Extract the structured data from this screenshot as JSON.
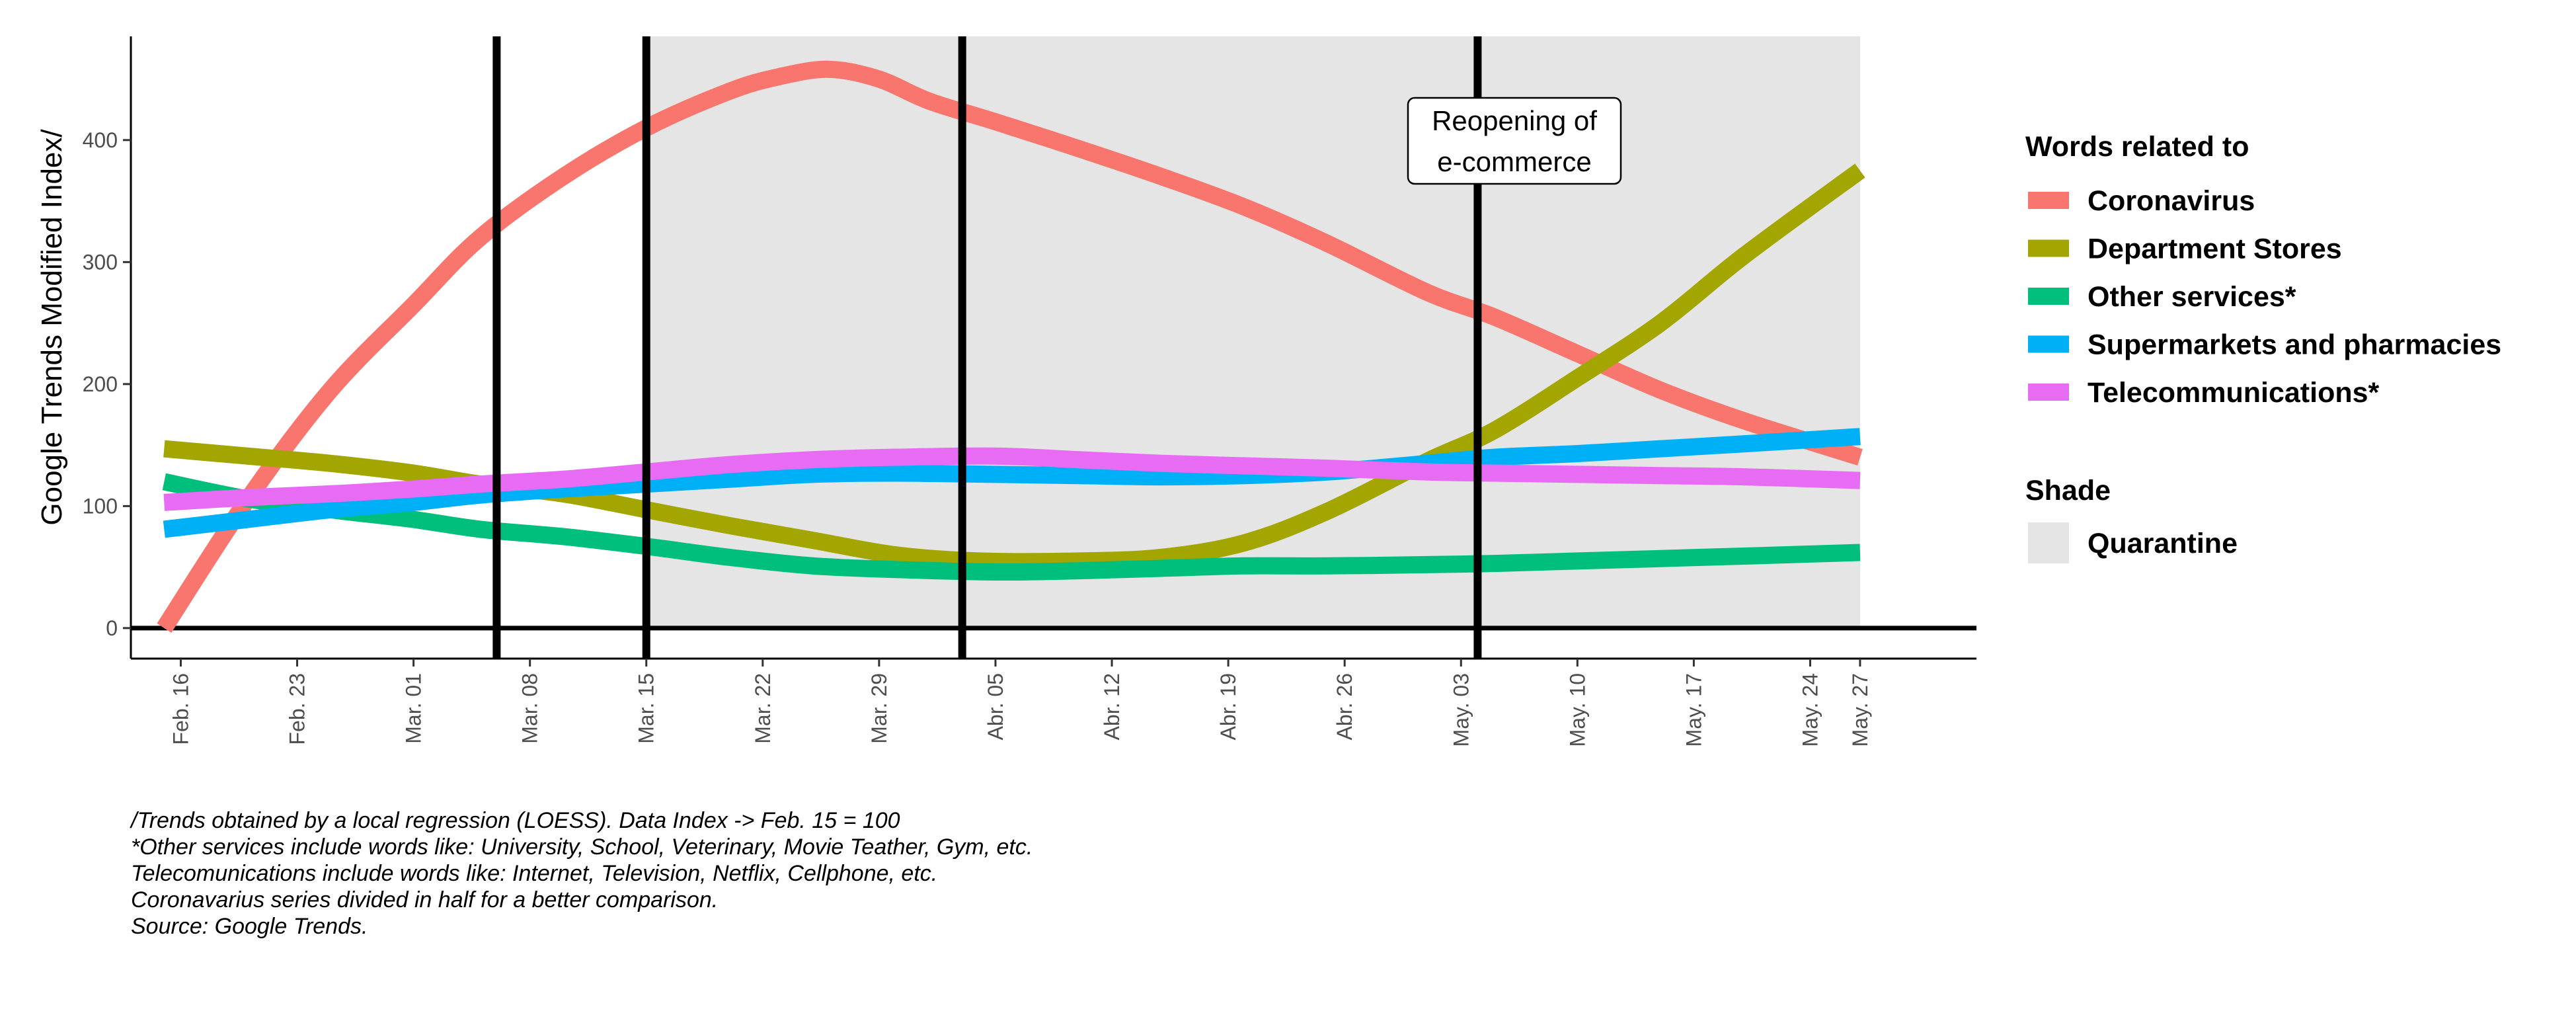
{
  "chart_data": {
    "type": "line",
    "ylabel": "Google Trends Modified Index/",
    "ylim": [
      -25,
      485
    ],
    "yticks": [
      0,
      100,
      200,
      300,
      400
    ],
    "x_range": [
      "2020-02-13",
      "2020-06-03"
    ],
    "grid": false,
    "legend_placement": "right",
    "x_ticks": [
      {
        "date": "2020-02-16",
        "label": "Feb. 16"
      },
      {
        "date": "2020-02-23",
        "label": "Feb. 23"
      },
      {
        "date": "2020-03-01",
        "label": "Mar. 01"
      },
      {
        "date": "2020-03-08",
        "label": "Mar. 08"
      },
      {
        "date": "2020-03-15",
        "label": "Mar. 15"
      },
      {
        "date": "2020-03-22",
        "label": "Mar. 22"
      },
      {
        "date": "2020-03-29",
        "label": "Mar. 29"
      },
      {
        "date": "2020-04-05",
        "label": "Abr. 05"
      },
      {
        "date": "2020-04-12",
        "label": "Abr. 12"
      },
      {
        "date": "2020-04-19",
        "label": "Abr. 19"
      },
      {
        "date": "2020-04-26",
        "label": "Abr. 26"
      },
      {
        "date": "2020-05-03",
        "label": "May. 03"
      },
      {
        "date": "2020-05-10",
        "label": "May. 10"
      },
      {
        "date": "2020-05-17",
        "label": "May. 17"
      },
      {
        "date": "2020-05-24",
        "label": "May. 24"
      },
      {
        "date": "2020-05-27",
        "label": "May. 27"
      }
    ],
    "shade": {
      "start": "2020-03-15",
      "end": "2020-05-27",
      "color": "#e5e5e5"
    },
    "vlines": [
      "2020-03-06",
      "2020-03-15",
      "2020-04-03",
      "2020-05-04"
    ],
    "hline": 0,
    "series": [
      {
        "name": "Coronavirus",
        "color": "#F8766D",
        "x": [
          "2020-02-15",
          "2020-02-20",
          "2020-02-25",
          "2020-03-01",
          "2020-03-05",
          "2020-03-10",
          "2020-03-15",
          "2020-03-20",
          "2020-03-23",
          "2020-03-26",
          "2020-03-29",
          "2020-04-01",
          "2020-04-05",
          "2020-04-10",
          "2020-04-15",
          "2020-04-20",
          "2020-04-25",
          "2020-05-01",
          "2020-05-05",
          "2020-05-10",
          "2020-05-15",
          "2020-05-20",
          "2020-05-27"
        ],
        "values": [
          0,
          105,
          195,
          265,
          320,
          370,
          410,
          440,
          452,
          458,
          450,
          432,
          415,
          393,
          370,
          345,
          315,
          275,
          255,
          225,
          195,
          170,
          140
        ]
      },
      {
        "name": "Department Stores",
        "color": "#A3A500",
        "x": [
          "2020-02-15",
          "2020-02-20",
          "2020-02-25",
          "2020-03-01",
          "2020-03-05",
          "2020-03-10",
          "2020-03-15",
          "2020-03-20",
          "2020-03-25",
          "2020-03-30",
          "2020-04-04",
          "2020-04-10",
          "2020-04-15",
          "2020-04-20",
          "2020-04-25",
          "2020-05-01",
          "2020-05-05",
          "2020-05-10",
          "2020-05-15",
          "2020-05-20",
          "2020-05-27"
        ],
        "values": [
          147,
          141,
          135,
          127,
          118,
          110,
          97,
          84,
          72,
          60,
          55,
          55,
          58,
          70,
          96,
          137,
          162,
          205,
          250,
          305,
          375
        ]
      },
      {
        "name": "Other services*",
        "color": "#00BF7D",
        "x": [
          "2020-02-15",
          "2020-02-20",
          "2020-02-25",
          "2020-03-01",
          "2020-03-05",
          "2020-03-10",
          "2020-03-15",
          "2020-03-20",
          "2020-03-25",
          "2020-03-30",
          "2020-04-05",
          "2020-04-10",
          "2020-04-15",
          "2020-04-20",
          "2020-04-25",
          "2020-05-01",
          "2020-05-05",
          "2020-05-10",
          "2020-05-15",
          "2020-05-20",
          "2020-05-27"
        ],
        "values": [
          120,
          106,
          97,
          89,
          81,
          75,
          67,
          58,
          51,
          48,
          46,
          47,
          49,
          51,
          51,
          52,
          53,
          55,
          57,
          59,
          62
        ]
      },
      {
        "name": "Supermarkets and pharmacies",
        "color": "#00B0F6",
        "x": [
          "2020-02-15",
          "2020-02-20",
          "2020-02-25",
          "2020-03-01",
          "2020-03-05",
          "2020-03-10",
          "2020-03-15",
          "2020-03-20",
          "2020-03-25",
          "2020-03-30",
          "2020-04-05",
          "2020-04-10",
          "2020-04-15",
          "2020-04-20",
          "2020-04-25",
          "2020-05-01",
          "2020-05-05",
          "2020-05-10",
          "2020-05-15",
          "2020-05-20",
          "2020-05-27"
        ],
        "values": [
          81,
          89,
          97,
          103,
          109,
          114,
          118,
          122,
          126,
          127,
          126,
          125,
          124,
          125,
          128,
          135,
          140,
          143,
          147,
          151,
          157
        ]
      },
      {
        "name": "Telecommunications*",
        "color": "#E76BF3",
        "x": [
          "2020-02-15",
          "2020-02-20",
          "2020-02-25",
          "2020-03-01",
          "2020-03-05",
          "2020-03-10",
          "2020-03-15",
          "2020-03-20",
          "2020-03-25",
          "2020-03-30",
          "2020-04-05",
          "2020-04-10",
          "2020-04-15",
          "2020-04-20",
          "2020-04-25",
          "2020-05-01",
          "2020-05-05",
          "2020-05-10",
          "2020-05-15",
          "2020-05-20",
          "2020-05-27"
        ],
        "values": [
          103,
          107,
          110,
          114,
          118,
          122,
          128,
          134,
          138,
          140,
          141,
          138,
          135,
          133,
          131,
          128,
          127,
          126,
          125,
          124,
          121
        ]
      }
    ],
    "annotation": {
      "lines": [
        "Reopening of",
        "e-commerce"
      ],
      "date": "2020-05-03",
      "y": 400
    },
    "legend": {
      "title": "Words related to",
      "shade_title": "Shade",
      "shade_label": "Quarantine"
    },
    "notes": [
      "/Trends obtained by a local regression (LOESS). Data Index -> Feb. 15 = 100",
      "*Other services include words like: University, School, Veterinary, Movie Teather, Gym, etc.",
      "Telecomunications include words like: Internet, Television, Netflix, Cellphone, etc.",
      "Coronavarius series divided in half for a better comparison.",
      "Source: Google Trends."
    ]
  }
}
